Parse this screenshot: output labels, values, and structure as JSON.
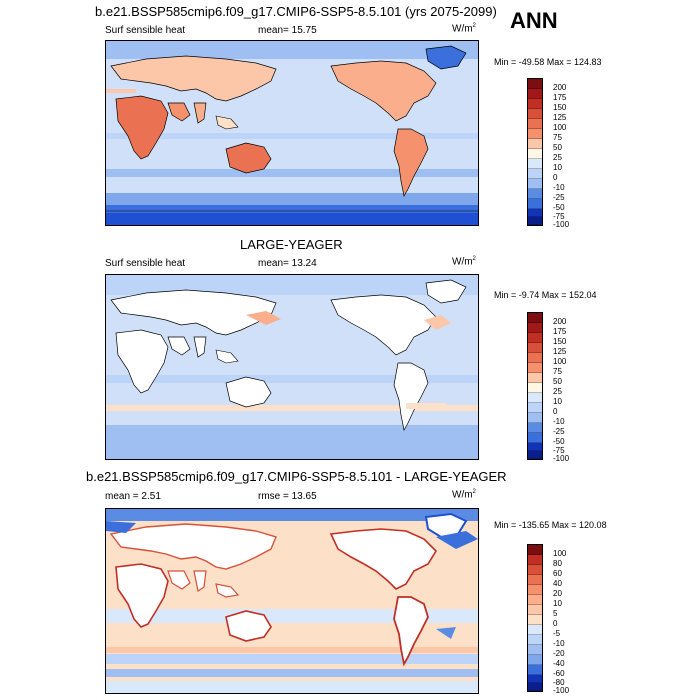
{
  "season": "ANN",
  "colors": {
    "red_ramp": [
      "#fff7e6",
      "#fde0c8",
      "#fcc6a8",
      "#fbae8c",
      "#f5926d",
      "#ea7252",
      "#d8503a",
      "#c12f24",
      "#a0181a",
      "#7a0e10"
    ],
    "blue_ramp": [
      "#d9e8fb",
      "#bcd4f7",
      "#9fbff2",
      "#7ea7ec",
      "#5a8ce4",
      "#3a6fdc",
      "#1f4fd2",
      "#1232b8",
      "#0b1f8c"
    ],
    "land": "#ffffff",
    "ocean_low": "#cfe0f8",
    "coast": "#000000"
  },
  "panels": [
    {
      "title": "b.e21.BSSP585cmip6.f09_g17.CMIP6-SSP5-8.5.101 (yrs 2075-2099)",
      "left_label": "Surf sensible heat",
      "mean_label": "mean=  15.75",
      "units_base": "W/m",
      "units_exp": "2",
      "minmax": "Min = -49.58 Max = 124.83",
      "ticks": [
        "200",
        "175",
        "150",
        "125",
        "100",
        "75",
        "50",
        "25",
        "10",
        "0",
        "-10",
        "-25",
        "-50",
        "-75",
        "-100"
      ]
    },
    {
      "title": "LARGE-YEAGER",
      "left_label": "Surf sensible heat",
      "mean_label": "mean=  13.24",
      "units_base": "W/m",
      "units_exp": "2",
      "minmax": "Min =  -9.74 Max = 152.04",
      "ticks": [
        "200",
        "175",
        "150",
        "125",
        "100",
        "75",
        "50",
        "25",
        "10",
        "0",
        "-10",
        "-25",
        "-50",
        "-75",
        "-100"
      ]
    },
    {
      "title": "b.e21.BSSP585cmip6.f09_g17.CMIP6-SSP5-8.5.101 - LARGE-YEAGER",
      "left_label": "mean =   2.51",
      "mean_label": "rmse =  13.65",
      "units_base": "W/m",
      "units_exp": "2",
      "minmax": "Min = -135.65 Max = 120.08",
      "ticks": [
        "100",
        "80",
        "60",
        "40",
        "20",
        "10",
        "5",
        "0",
        "-5",
        "-10",
        "-20",
        "-40",
        "-60",
        "-80",
        "-100"
      ]
    }
  ],
  "chart_data": [
    {
      "type": "heatmap",
      "title": "b.e21.BSSP585cmip6.f09_g17.CMIP6-SSP5-8.5.101 (yrs 2075-2099)",
      "variable": "Surf sensible heat",
      "units": "W/m2",
      "mean": 15.75,
      "min": -49.58,
      "max": 124.83,
      "contour_levels": [
        -100,
        -75,
        -50,
        -25,
        -10,
        0,
        10,
        25,
        50,
        75,
        100,
        125,
        150,
        175,
        200
      ]
    },
    {
      "type": "heatmap",
      "title": "LARGE-YEAGER",
      "variable": "Surf sensible heat",
      "units": "W/m2",
      "mean": 13.24,
      "min": -9.74,
      "max": 152.04,
      "contour_levels": [
        -100,
        -75,
        -50,
        -25,
        -10,
        0,
        10,
        25,
        50,
        75,
        100,
        125,
        150,
        175,
        200
      ]
    },
    {
      "type": "heatmap",
      "title": "b.e21.BSSP585cmip6.f09_g17.CMIP6-SSP5-8.5.101 - LARGE-YEAGER",
      "units": "W/m2",
      "mean": 2.51,
      "rmse": 13.65,
      "min": -135.65,
      "max": 120.08,
      "contour_levels": [
        -100,
        -80,
        -60,
        -40,
        -20,
        -10,
        -5,
        0,
        5,
        10,
        20,
        40,
        60,
        80,
        100
      ]
    }
  ]
}
